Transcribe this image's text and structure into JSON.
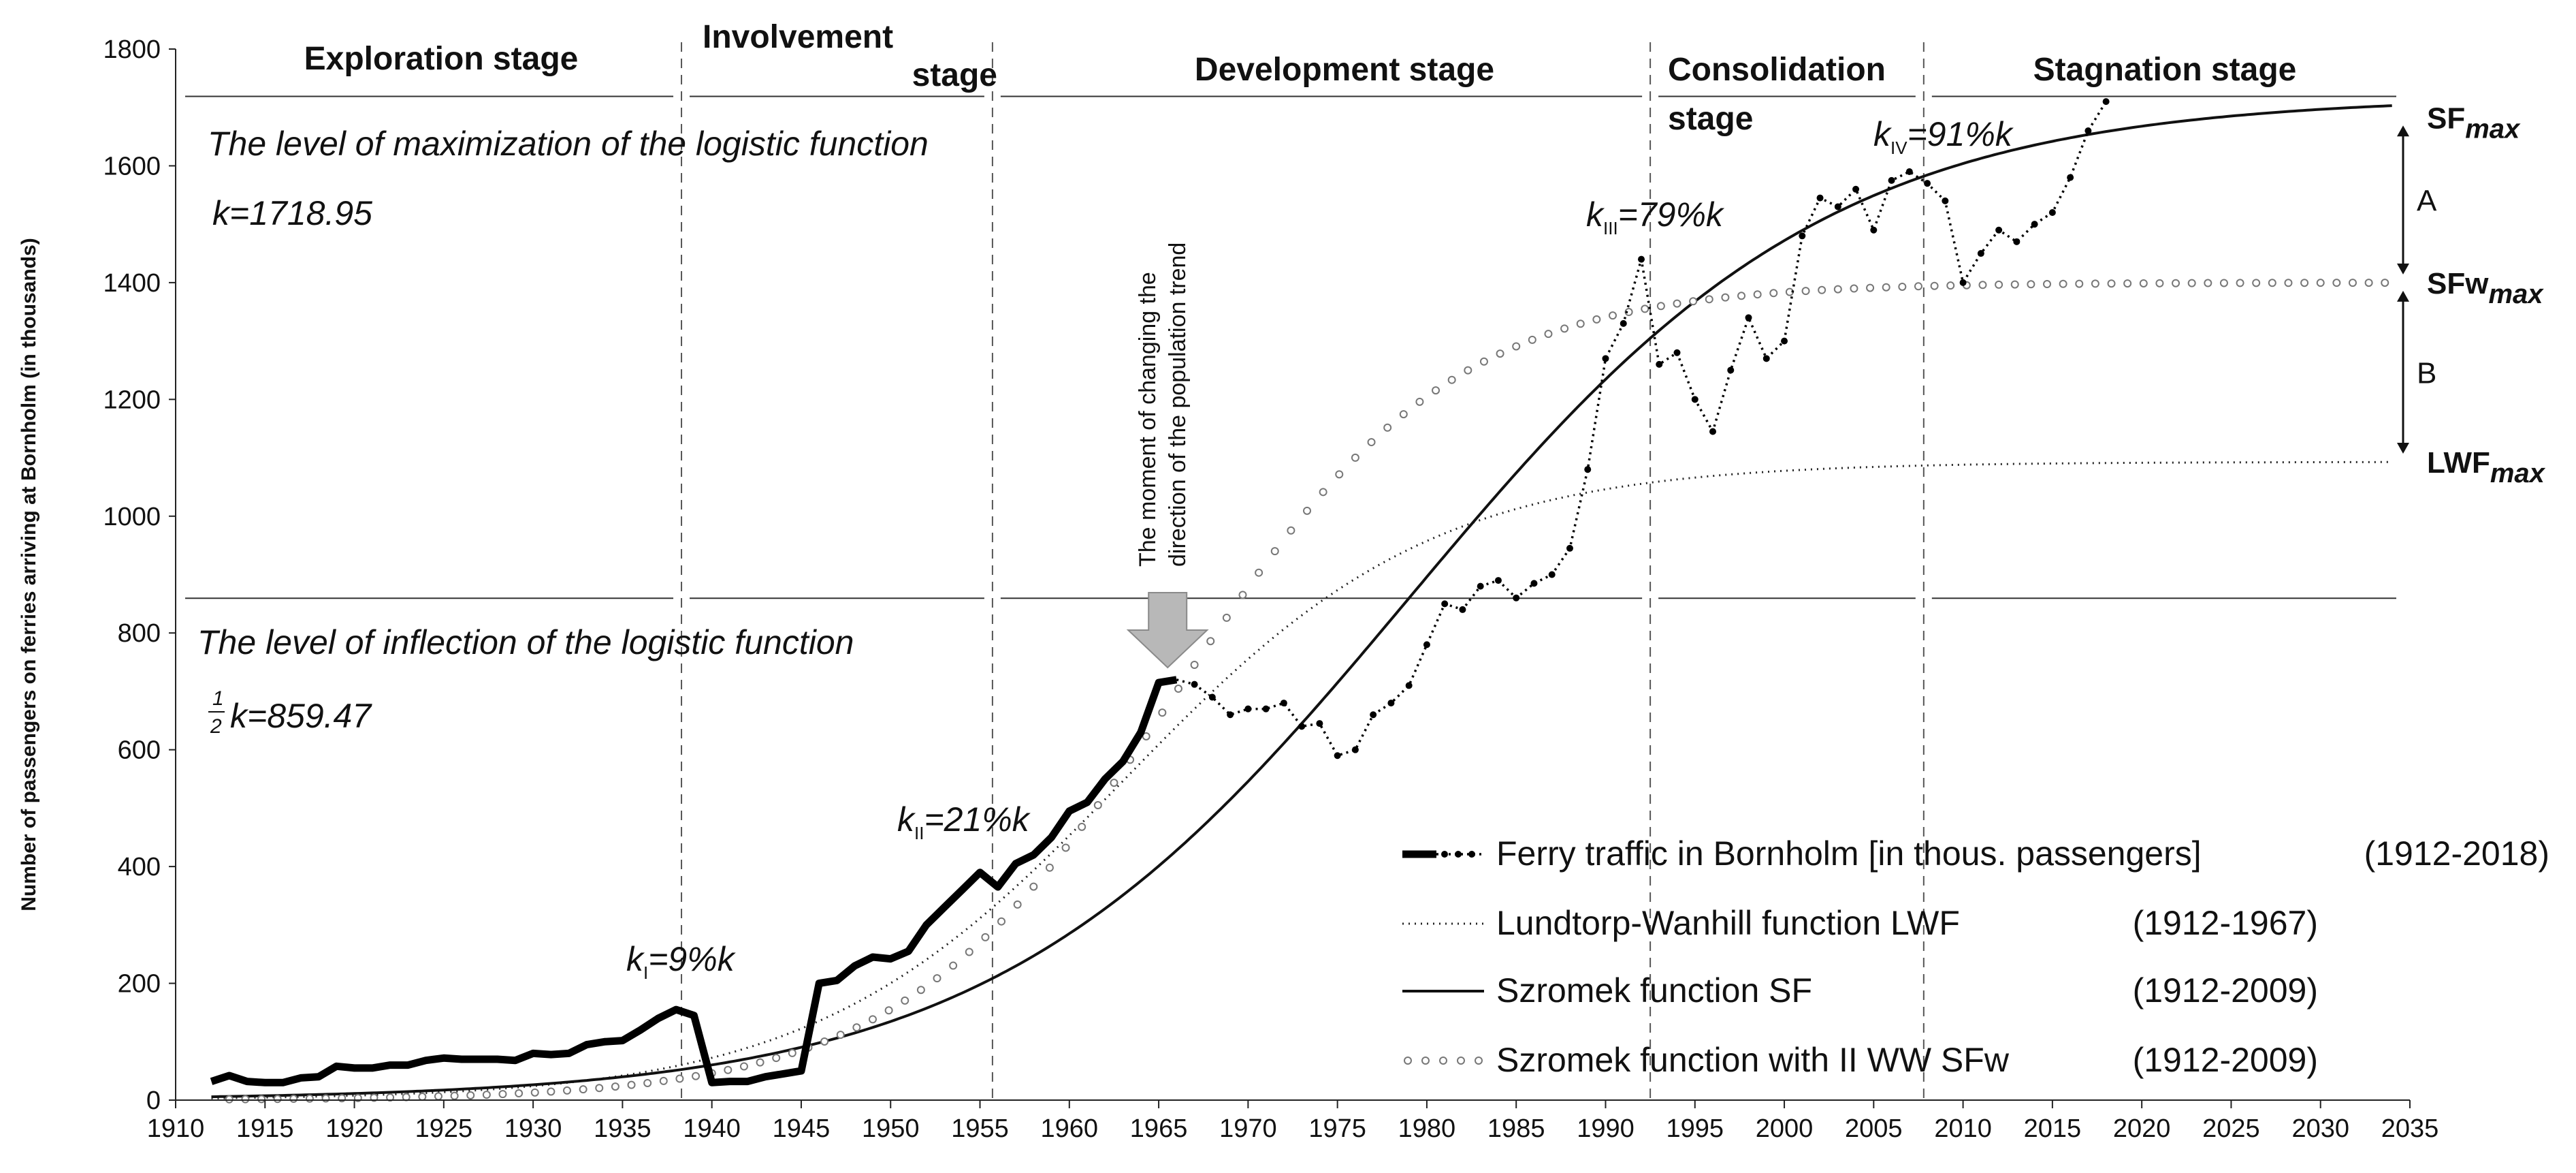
{
  "chart_data": {
    "type": "line",
    "title": "",
    "xlabel": "",
    "ylabel": "Number of passengers on ferries arriving at Bornholm (in thousands)",
    "xlim": [
      1910,
      2035
    ],
    "ylim": [
      0,
      1800
    ],
    "x_ticks": [
      "1910",
      "1915",
      "1920",
      "1925",
      "1930",
      "1935",
      "1940",
      "1945",
      "1950",
      "1955",
      "1960",
      "1965",
      "1970",
      "1975",
      "1980",
      "1985",
      "1990",
      "1995",
      "2000",
      "2005",
      "2010",
      "2015",
      "2020",
      "2025",
      "2030",
      "2035"
    ],
    "y_ticks": [
      "0",
      "200",
      "400",
      "600",
      "800",
      "1000",
      "1200",
      "1400",
      "1600",
      "1800"
    ],
    "stages": [
      {
        "id": "exploration",
        "label_lines": [
          "Exploration stage"
        ]
      },
      {
        "id": "involvement",
        "label_lines": [
          "Involvement",
          "stage"
        ]
      },
      {
        "id": "development",
        "label_lines": [
          "Development stage"
        ]
      },
      {
        "id": "consolidation",
        "label_lines": [
          "Consolidation",
          "stage"
        ]
      },
      {
        "id": "stagnation",
        "label_lines": [
          "Stagnation stage"
        ]
      }
    ],
    "stage_boundaries": [
      1938.3,
      1955.7,
      1992.5,
      2007.8
    ],
    "max_level": {
      "value": 1718.95,
      "text": "The level of maximization of the logistic function",
      "k_text": "k=1718.95"
    },
    "inflection_level": {
      "value": 859.47,
      "text": "The level of inflection of the logistic function",
      "half": "1",
      "half_den": "2",
      "k_text": "k=859.47"
    },
    "annotations": [
      {
        "k": "k",
        "sub": "I",
        "rest": "=9%k"
      },
      {
        "k": "k",
        "sub": "II",
        "rest": "=21%k"
      },
      {
        "k": "k",
        "sub": "III",
        "rest": "=79%k"
      },
      {
        "k": "k",
        "sub": "IV",
        "rest": "=91%k"
      }
    ],
    "trend_change": {
      "x": 1965.5,
      "line1": "The moment of changing the",
      "line2": "direction of the population trend"
    },
    "right_labels": [
      {
        "id": "sfmax",
        "main": "SF",
        "sub": "max",
        "value": 1683
      },
      {
        "id": "sfwmax",
        "main": "SFw",
        "sub": "max",
        "value": 1400
      },
      {
        "id": "lwfmax",
        "main": "LWF",
        "sub": "max",
        "value": 1093
      }
    ],
    "gap_labels": [
      "A",
      "B"
    ],
    "series": [
      {
        "name": "Ferry traffic in Bornholm [in thous. passengers]",
        "period": "(1912-2018)",
        "style": "bold-then-dotted",
        "split_year": 1966,
        "x": [
          1912,
          1913,
          1914,
          1915,
          1916,
          1917,
          1918,
          1919,
          1920,
          1921,
          1922,
          1923,
          1924,
          1925,
          1926,
          1927,
          1928,
          1929,
          1930,
          1931,
          1932,
          1933,
          1934,
          1935,
          1936,
          1937,
          1938,
          1939,
          1940,
          1941,
          1942,
          1943,
          1944,
          1945,
          1946,
          1947,
          1948,
          1949,
          1950,
          1951,
          1952,
          1953,
          1954,
          1955,
          1956,
          1957,
          1958,
          1959,
          1960,
          1961,
          1962,
          1963,
          1964,
          1965,
          1966,
          1967,
          1968,
          1969,
          1970,
          1971,
          1972,
          1973,
          1974,
          1975,
          1976,
          1977,
          1978,
          1979,
          1980,
          1981,
          1982,
          1983,
          1984,
          1985,
          1986,
          1987,
          1988,
          1989,
          1990,
          1991,
          1992,
          1993,
          1994,
          1995,
          1996,
          1997,
          1998,
          1999,
          2000,
          2001,
          2002,
          2003,
          2004,
          2005,
          2006,
          2007,
          2008,
          2009,
          2010,
          2011,
          2012,
          2013,
          2014,
          2015,
          2016,
          2017,
          2018
        ],
        "values": [
          32,
          42,
          32,
          30,
          30,
          38,
          40,
          58,
          55,
          55,
          60,
          60,
          68,
          72,
          70,
          70,
          70,
          68,
          80,
          78,
          80,
          95,
          100,
          102,
          120,
          140,
          155,
          145,
          30,
          32,
          32,
          40,
          45,
          50,
          200,
          205,
          230,
          245,
          242,
          255,
          300,
          330,
          360,
          390,
          365,
          405,
          420,
          450,
          495,
          510,
          550,
          580,
          630,
          715,
          720,
          712,
          690,
          660,
          670,
          670,
          680,
          640,
          645,
          590,
          600,
          660,
          680,
          710,
          780,
          850,
          840,
          880,
          890,
          860,
          885,
          900,
          945,
          1080,
          1270,
          1330,
          1440,
          1260,
          1280,
          1200,
          1145,
          1250,
          1340,
          1270,
          1300,
          1480,
          1545,
          1530,
          1560,
          1490,
          1575,
          1590,
          1570,
          1540,
          1400,
          1450,
          1490,
          1470,
          1500,
          1520,
          1580,
          1660,
          1710
        ]
      },
      {
        "name": "Lundtorp-Wanhill function LWF",
        "period": "(1912-1967)",
        "style": "dotted",
        "K": 1093,
        "t0": 1963,
        "r": 0.115
      },
      {
        "name": "Szromek function SF",
        "period": "(1912-2009)",
        "style": "solid",
        "K": 1718.95,
        "t0": 1979,
        "r": 0.085
      },
      {
        "name": "Szromek function with II WW SFw",
        "period": "(1912-2009)",
        "style": "circles",
        "K": 1400,
        "t0": 1966,
        "r": 0.13
      }
    ]
  }
}
